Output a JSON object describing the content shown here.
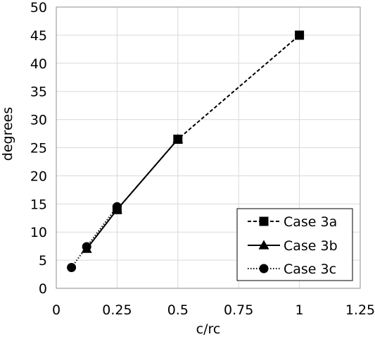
{
  "chart_data": {
    "type": "line",
    "xlabel": "c/rc",
    "ylabel": "degrees",
    "xlim": [
      0,
      1.25
    ],
    "ylim": [
      0,
      50
    ],
    "x_ticks": [
      0,
      0.25,
      0.5,
      0.75,
      1,
      1.25
    ],
    "x_tick_labels": [
      "0",
      "0.25",
      "0.5",
      "0.75",
      "1",
      "1.25"
    ],
    "y_ticks": [
      0,
      5,
      10,
      15,
      20,
      25,
      30,
      35,
      40,
      45,
      50
    ],
    "y_tick_labels": [
      "0",
      "5",
      "10",
      "15",
      "20",
      "25",
      "30",
      "35",
      "40",
      "45",
      "50"
    ],
    "grid": true,
    "legend_position": "bottom-right",
    "series": [
      {
        "name": "Case 3a",
        "marker": "square",
        "line_style": "dashed",
        "x": [
          0.25,
          0.5,
          1
        ],
        "y": [
          14,
          26.5,
          45
        ]
      },
      {
        "name": "Case 3b",
        "marker": "triangle",
        "line_style": "solid",
        "x": [
          0.125,
          0.25,
          0.5
        ],
        "y": [
          7,
          14,
          26.5
        ]
      },
      {
        "name": "Case 3c",
        "marker": "circle",
        "line_style": "dotted",
        "x": [
          0.0625,
          0.125,
          0.25
        ],
        "y": [
          3.7,
          7.4,
          14.5
        ]
      }
    ]
  }
}
